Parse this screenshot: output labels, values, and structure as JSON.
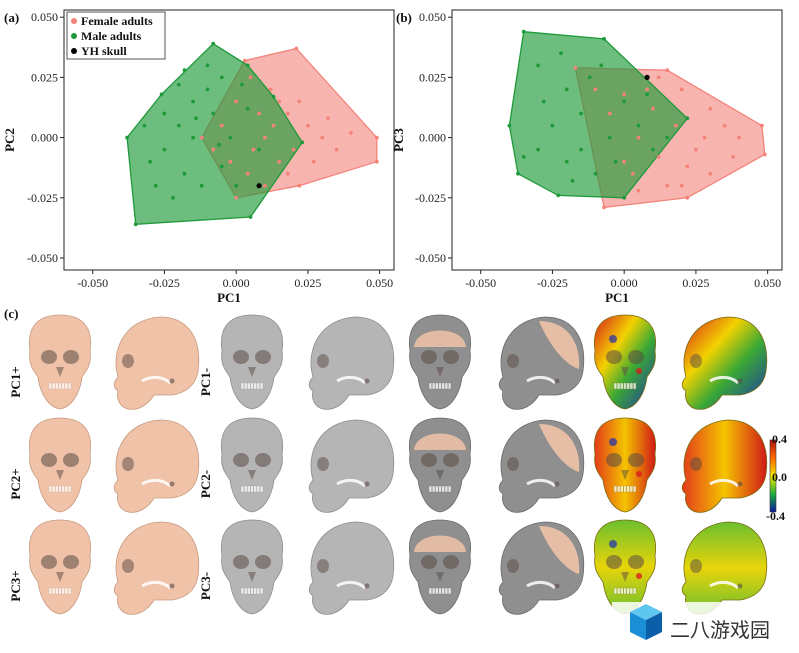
{
  "panel_labels": {
    "a": "(a)",
    "b": "(b)",
    "c": "(c)"
  },
  "colors": {
    "female": "#f4837a",
    "male": "#1e9a3a",
    "skull": "#000000",
    "bone": "#f0c3a8",
    "gray": "#a9a9a9"
  },
  "chart_data": [
    {
      "type": "scatter",
      "panel": "a",
      "xlabel": "PC1",
      "ylabel": "PC2",
      "xlim": [
        -0.06,
        0.055
      ],
      "ylim": [
        -0.055,
        0.053
      ],
      "xticks": [
        "-0.050",
        "-0.025",
        "0.000",
        "0.025",
        "0.050"
      ],
      "yticks": [
        "0.050",
        "0.025",
        "0.000",
        "-0.025",
        "-0.050"
      ],
      "legend": [
        "Female adults",
        "Male adults",
        "YH skull"
      ],
      "legend_position": "top-left",
      "grid": false,
      "series": [
        {
          "name": "Female adults",
          "hull": [
            [
              0.021,
              0.037
            ],
            [
              0.049,
              0.0
            ],
            [
              0.049,
              -0.01
            ],
            [
              0.022,
              -0.02
            ],
            [
              -0.0,
              -0.025
            ],
            [
              -0.012,
              0.0
            ],
            [
              0.003,
              0.032
            ]
          ],
          "points": [
            [
              0.021,
              0.037
            ],
            [
              0.049,
              0.0
            ],
            [
              0.049,
              -0.01
            ],
            [
              0.022,
              -0.02
            ],
            [
              -0.0,
              -0.025
            ],
            [
              -0.012,
              0.0
            ],
            [
              0.003,
              0.032
            ],
            [
              0.005,
              0.025
            ],
            [
              0.012,
              0.02
            ],
            [
              0.018,
              0.01
            ],
            [
              0.025,
              0.005
            ],
            [
              0.03,
              0.0
            ],
            [
              0.035,
              -0.005
            ],
            [
              0.015,
              -0.01
            ],
            [
              0.008,
              0.01
            ],
            [
              0.0,
              0.015
            ],
            [
              -0.005,
              0.005
            ],
            [
              0.01,
              0.0
            ],
            [
              0.02,
              -0.005
            ],
            [
              0.027,
              -0.01
            ],
            [
              0.04,
              0.002
            ],
            [
              0.015,
              0.015
            ],
            [
              -0.002,
              -0.01
            ],
            [
              0.006,
              -0.005
            ],
            [
              0.013,
              0.005
            ],
            [
              0.032,
              0.008
            ],
            [
              0.022,
              0.015
            ],
            [
              -0.008,
              -0.005
            ],
            [
              0.004,
              -0.015
            ],
            [
              0.018,
              -0.015
            ],
            [
              0.01,
              -0.02
            ]
          ]
        },
        {
          "name": "Male adults",
          "hull": [
            [
              -0.008,
              0.039
            ],
            [
              0.004,
              0.03
            ],
            [
              0.013,
              0.017
            ],
            [
              0.023,
              -0.002
            ],
            [
              0.005,
              -0.033
            ],
            [
              -0.035,
              -0.036
            ],
            [
              -0.038,
              0.0
            ],
            [
              -0.026,
              0.018
            ]
          ],
          "points": [
            [
              -0.008,
              0.039
            ],
            [
              0.004,
              0.03
            ],
            [
              0.013,
              0.017
            ],
            [
              0.023,
              -0.002
            ],
            [
              0.005,
              -0.033
            ],
            [
              -0.035,
              -0.036
            ],
            [
              -0.038,
              0.0
            ],
            [
              -0.026,
              0.018
            ],
            [
              -0.03,
              -0.01
            ],
            [
              -0.025,
              -0.005
            ],
            [
              -0.02,
              0.005
            ],
            [
              -0.015,
              0.015
            ],
            [
              -0.01,
              0.02
            ],
            [
              -0.005,
              0.025
            ],
            [
              -0.018,
              -0.015
            ],
            [
              -0.012,
              -0.02
            ],
            [
              -0.028,
              -0.02
            ],
            [
              -0.022,
              -0.025
            ],
            [
              -0.008,
              0.01
            ],
            [
              -0.002,
              0.0
            ],
            [
              0.004,
              0.012
            ],
            [
              0.008,
              -0.005
            ],
            [
              -0.015,
              0.0
            ],
            [
              -0.005,
              -0.012
            ],
            [
              -0.01,
              0.03
            ],
            [
              -0.02,
              0.022
            ],
            [
              -0.032,
              0.005
            ],
            [
              0.0,
              -0.02
            ],
            [
              -0.025,
              0.01
            ],
            [
              -0.014,
              0.008
            ],
            [
              0.002,
              0.022
            ],
            [
              -0.006,
              -0.003
            ],
            [
              -0.018,
              0.028
            ]
          ]
        },
        {
          "name": "YH skull",
          "points": [
            [
              0.008,
              -0.02
            ]
          ]
        }
      ]
    },
    {
      "type": "scatter",
      "panel": "b",
      "xlabel": "PC1",
      "ylabel": "PC3",
      "xlim": [
        -0.06,
        0.055
      ],
      "ylim": [
        -0.055,
        0.053
      ],
      "xticks": [
        "-0.050",
        "-0.025",
        "0.000",
        "0.025",
        "0.050"
      ],
      "yticks": [
        "0.050",
        "0.025",
        "0.000",
        "-0.025",
        "-0.050"
      ],
      "grid": false,
      "series": [
        {
          "name": "Female adults",
          "hull": [
            [
              0.015,
              0.028
            ],
            [
              0.048,
              0.005
            ],
            [
              0.049,
              -0.007
            ],
            [
              0.022,
              -0.025
            ],
            [
              -0.007,
              -0.029
            ],
            [
              -0.017,
              0.029
            ]
          ],
          "points": [
            [
              0.015,
              0.028
            ],
            [
              0.048,
              0.005
            ],
            [
              0.049,
              -0.007
            ],
            [
              0.022,
              -0.025
            ],
            [
              -0.007,
              -0.029
            ],
            [
              -0.017,
              0.029
            ],
            [
              0.02,
              0.02
            ],
            [
              0.03,
              0.012
            ],
            [
              0.035,
              0.005
            ],
            [
              0.04,
              0.0
            ],
            [
              0.025,
              -0.005
            ],
            [
              0.03,
              -0.015
            ],
            [
              0.015,
              -0.02
            ],
            [
              0.005,
              -0.022
            ],
            [
              0.0,
              0.018
            ],
            [
              0.01,
              0.012
            ],
            [
              0.005,
              0.0
            ],
            [
              0.018,
              0.005
            ],
            [
              0.022,
              -0.012
            ],
            [
              0.012,
              -0.008
            ],
            [
              -0.005,
              0.01
            ],
            [
              0.008,
              0.02
            ],
            [
              0.028,
              0.0
            ],
            [
              0.038,
              -0.008
            ],
            [
              0.0,
              -0.01
            ],
            [
              0.012,
              0.025
            ],
            [
              -0.01,
              0.02
            ],
            [
              0.003,
              -0.015
            ],
            [
              0.02,
              -0.02
            ]
          ]
        },
        {
          "name": "Male adults",
          "hull": [
            [
              -0.035,
              0.044
            ],
            [
              -0.007,
              0.041
            ],
            [
              0.022,
              0.008
            ],
            [
              0.0,
              -0.025
            ],
            [
              -0.023,
              -0.024
            ],
            [
              -0.037,
              -0.015
            ],
            [
              -0.04,
              0.005
            ]
          ],
          "points": [
            [
              -0.035,
              0.044
            ],
            [
              -0.007,
              0.041
            ],
            [
              0.022,
              0.008
            ],
            [
              0.0,
              -0.025
            ],
            [
              -0.023,
              -0.024
            ],
            [
              -0.037,
              -0.015
            ],
            [
              -0.04,
              0.005
            ],
            [
              -0.03,
              0.03
            ],
            [
              -0.02,
              0.02
            ],
            [
              -0.015,
              0.01
            ],
            [
              -0.025,
              0.005
            ],
            [
              -0.03,
              -0.005
            ],
            [
              -0.02,
              -0.01
            ],
            [
              -0.01,
              -0.015
            ],
            [
              -0.005,
              0.0
            ],
            [
              0.005,
              0.005
            ],
            [
              0.01,
              -0.005
            ],
            [
              -0.012,
              0.025
            ],
            [
              -0.028,
              0.015
            ],
            [
              -0.018,
              -0.018
            ],
            [
              0.0,
              0.015
            ],
            [
              -0.008,
              0.03
            ],
            [
              -0.035,
              -0.008
            ],
            [
              0.015,
              0.0
            ],
            [
              -0.003,
              -0.01
            ],
            [
              -0.022,
              0.035
            ],
            [
              -0.015,
              -0.005
            ],
            [
              0.008,
              0.018
            ]
          ]
        },
        {
          "name": "YH skull",
          "points": [
            [
              0.008,
              0.025
            ]
          ]
        }
      ]
    }
  ],
  "skull_grid": {
    "rows": [
      {
        "pos_label": "PC1+",
        "neg_label": "PC1-"
      },
      {
        "pos_label": "PC2+",
        "neg_label": "PC2-"
      },
      {
        "pos_label": "PC3+",
        "neg_label": "PC3-"
      }
    ],
    "colorbar": {
      "max": "0.4",
      "mid": "0.0",
      "min": "-0.4"
    }
  },
  "watermark": {
    "text": "二八游戏园"
  }
}
